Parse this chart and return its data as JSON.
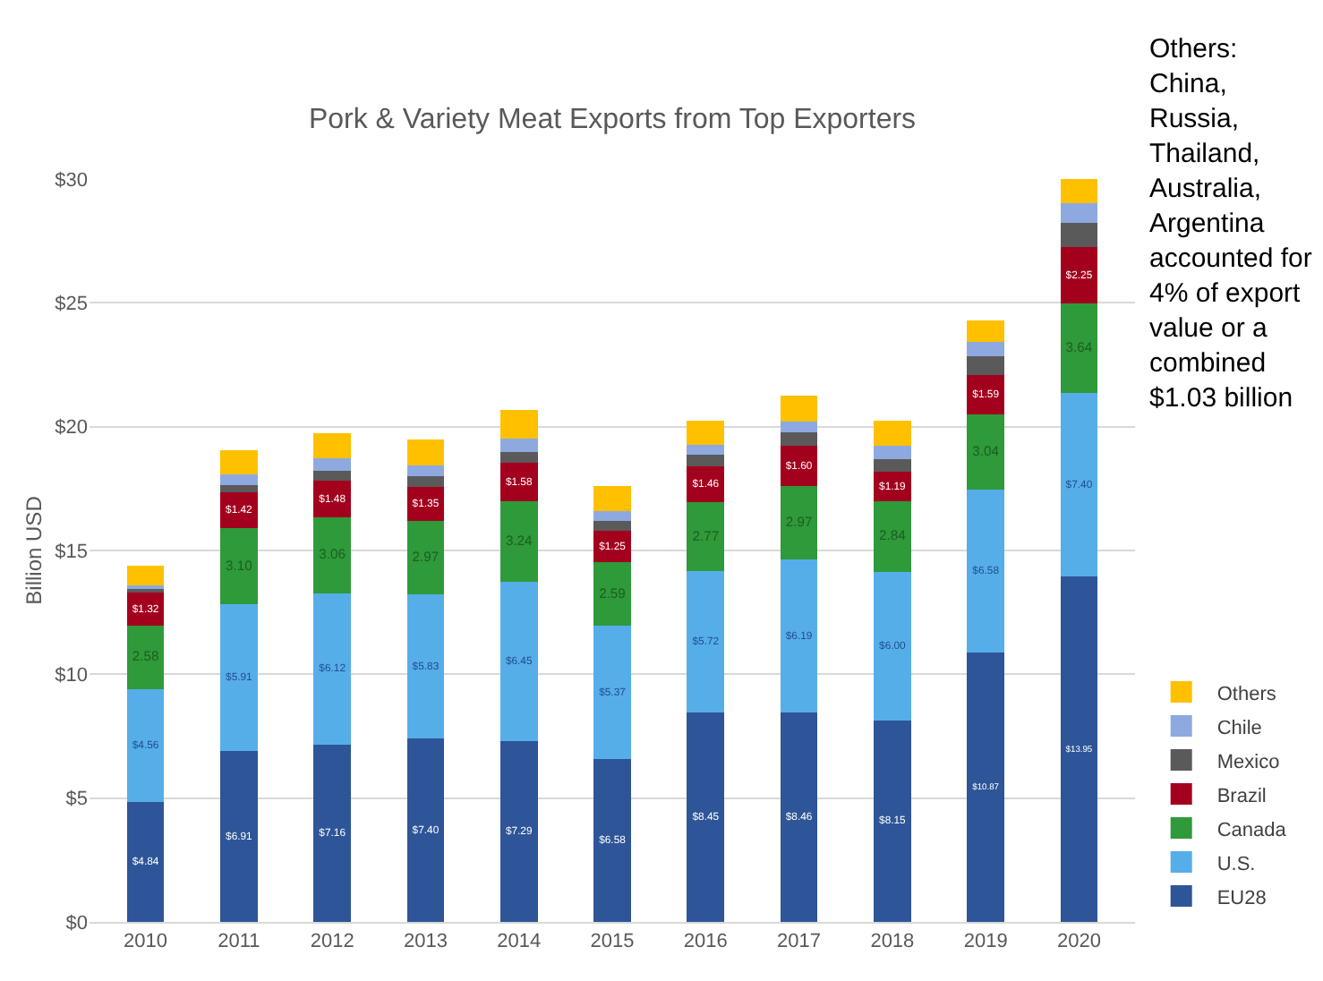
{
  "chart_data": {
    "type": "bar",
    "stacked": true,
    "title": "Pork & Variety Meat Exports from Top Exporters",
    "ylabel": "Billion USD",
    "categories": [
      "2010",
      "2011",
      "2012",
      "2013",
      "2014",
      "2015",
      "2016",
      "2017",
      "2018",
      "2019",
      "2020"
    ],
    "series": [
      {
        "name": "EU28",
        "color": "#2e5597",
        "values": [
          4.84,
          6.91,
          7.16,
          7.4,
          7.29,
          6.58,
          8.45,
          8.46,
          8.15,
          10.87,
          13.95
        ],
        "value_labels": [
          "$4.84",
          "$6.91",
          "$7.16",
          "$7.40",
          "$7.29",
          "$6.58",
          "$8.45",
          "$8.46",
          "$8.15",
          "$10.87",
          "$13.95"
        ]
      },
      {
        "name": "U.S.",
        "color": "#56aee9",
        "values": [
          4.56,
          5.91,
          6.12,
          5.83,
          6.45,
          5.37,
          5.72,
          6.19,
          6.0,
          6.58,
          7.4
        ],
        "value_labels": [
          "$4.56",
          "$5.91",
          "$6.12",
          "$5.83",
          "$6.45",
          "$5.37",
          "$5.72",
          "$6.19",
          "$6.00",
          "$6.58",
          "$7.40"
        ]
      },
      {
        "name": "Canada",
        "color": "#2e9a3a",
        "values": [
          2.58,
          3.1,
          3.06,
          2.97,
          3.24,
          2.59,
          2.77,
          2.97,
          2.84,
          3.04,
          3.64
        ],
        "value_labels": [
          "2.58",
          "3.10",
          "3.06",
          "2.97",
          "3.24",
          "2.59",
          "2.77",
          "2.97",
          "2.84",
          "3.04",
          "3.64"
        ]
      },
      {
        "name": "Brazil",
        "color": "#a3001e",
        "values": [
          1.32,
          1.42,
          1.48,
          1.35,
          1.58,
          1.25,
          1.46,
          1.6,
          1.19,
          1.59,
          2.25
        ],
        "value_labels": [
          "$1.32",
          "$1.42",
          "$1.48",
          "$1.35",
          "$1.58",
          "$1.25",
          "$1.46",
          "$1.60",
          "$1.19",
          "$1.59",
          "$2.25"
        ]
      },
      {
        "name": "Mexico",
        "color": "#5a5a5a",
        "values": [
          0.2,
          0.3,
          0.4,
          0.45,
          0.4,
          0.4,
          0.45,
          0.55,
          0.5,
          0.75,
          1.0
        ]
      },
      {
        "name": "Chile",
        "color": "#8ea9e0",
        "values": [
          0.1,
          0.45,
          0.5,
          0.45,
          0.55,
          0.4,
          0.4,
          0.45,
          0.55,
          0.6,
          0.8
        ]
      },
      {
        "name": "Others",
        "color": "#ffc000",
        "values": [
          0.8,
          0.95,
          1.0,
          1.05,
          1.15,
          1.0,
          1.0,
          1.05,
          1.0,
          0.85,
          0.95
        ]
      }
    ],
    "ylim": [
      0,
      30
    ],
    "yticks": [
      {
        "value": 0,
        "label": "$0"
      },
      {
        "value": 5,
        "label": "$5"
      },
      {
        "value": 10,
        "label": "$10"
      },
      {
        "value": 15,
        "label": "$15"
      },
      {
        "value": 20,
        "label": "$20"
      },
      {
        "value": 25,
        "label": "$25"
      },
      {
        "value": 30,
        "label": "$30"
      }
    ],
    "grid": "y",
    "legend": "right",
    "annotations": [
      "Others: China, Russia, Thailand, Australia, Argentina accounted for 4% of export value or a combined $1.03 billion"
    ]
  }
}
